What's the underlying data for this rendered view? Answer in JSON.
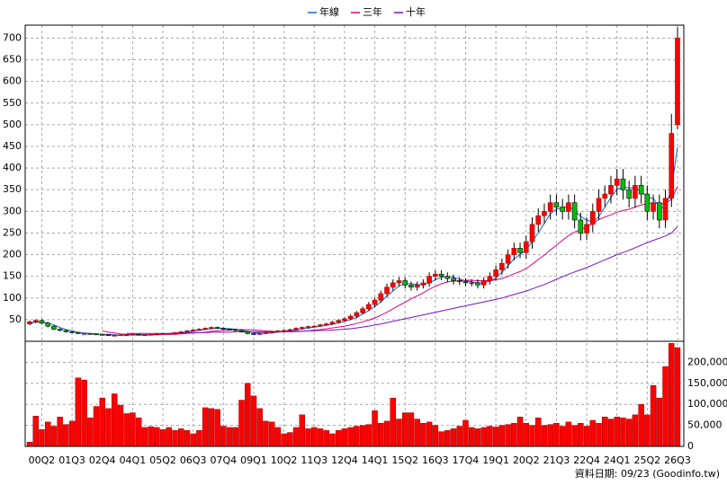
{
  "chart_data": {
    "type": "candlestick",
    "categories": [
      null,
      null,
      "00Q2",
      null,
      null,
      null,
      null,
      "01Q3",
      null,
      null,
      null,
      null,
      "02Q4",
      null,
      null,
      null,
      null,
      "04Q1",
      null,
      null,
      null,
      null,
      "05Q2",
      null,
      null,
      null,
      null,
      "06Q3",
      null,
      null,
      null,
      null,
      "07Q4",
      null,
      null,
      null,
      null,
      "09Q1",
      null,
      null,
      null,
      null,
      "10Q2",
      null,
      null,
      null,
      null,
      "11Q3",
      null,
      null,
      null,
      null,
      "12Q4",
      null,
      null,
      null,
      null,
      "14Q1",
      null,
      null,
      null,
      null,
      "15Q2",
      null,
      null,
      null,
      null,
      "16Q3",
      null,
      null,
      null,
      null,
      "17Q4",
      null,
      null,
      null,
      null,
      "19Q1",
      null,
      null,
      null,
      null,
      "20Q2",
      null,
      null,
      null,
      null,
      "21Q3",
      null,
      null,
      null,
      null,
      "22Q4",
      null,
      null,
      null,
      null,
      "24Q1",
      null,
      null,
      null,
      null,
      "25Q2",
      null,
      null,
      null,
      null,
      "26Q3"
    ],
    "ohlc": [
      [
        40,
        48,
        37,
        45
      ],
      [
        45,
        51,
        42,
        48
      ],
      [
        48,
        51,
        39,
        42
      ],
      [
        42,
        45,
        32,
        35
      ],
      [
        35,
        37,
        26,
        28
      ],
      [
        28,
        30,
        23,
        25
      ],
      [
        25,
        27,
        20,
        22
      ],
      [
        22,
        23,
        19,
        20
      ],
      [
        20,
        21,
        17,
        18
      ],
      [
        18,
        19,
        17,
        18
      ],
      [
        18,
        19,
        16,
        17
      ],
      [
        17,
        18,
        15,
        16
      ],
      [
        16,
        17,
        14,
        15
      ],
      [
        15,
        16,
        13,
        14
      ],
      [
        14,
        15,
        13,
        14
      ],
      [
        14,
        16,
        13,
        15
      ],
      [
        15,
        16,
        14,
        15
      ],
      [
        15,
        17,
        14,
        16
      ],
      [
        16,
        17,
        14,
        15
      ],
      [
        15,
        16,
        14,
        15
      ],
      [
        15,
        17,
        14,
        16
      ],
      [
        16,
        18,
        15,
        17
      ],
      [
        17,
        19,
        16,
        18
      ],
      [
        18,
        19,
        17,
        18
      ],
      [
        18,
        21,
        17,
        20
      ],
      [
        20,
        23,
        19,
        22
      ],
      [
        22,
        26,
        21,
        24
      ],
      [
        24,
        28,
        23,
        26
      ],
      [
        26,
        30,
        25,
        28
      ],
      [
        28,
        32,
        26,
        30
      ],
      [
        30,
        34,
        28,
        32
      ],
      [
        32,
        34,
        28,
        30
      ],
      [
        30,
        32,
        26,
        28
      ],
      [
        28,
        30,
        25,
        27
      ],
      [
        27,
        29,
        23,
        25
      ],
      [
        25,
        27,
        20,
        22
      ],
      [
        22,
        24,
        16,
        18
      ],
      [
        18,
        19,
        14,
        16
      ],
      [
        16,
        20,
        15,
        18
      ],
      [
        18,
        22,
        17,
        20
      ],
      [
        20,
        24,
        19,
        22
      ],
      [
        22,
        26,
        21,
        24
      ],
      [
        24,
        27,
        22,
        25
      ],
      [
        25,
        29,
        24,
        27
      ],
      [
        27,
        32,
        25,
        30
      ],
      [
        30,
        34,
        28,
        32
      ],
      [
        32,
        36,
        30,
        34
      ],
      [
        34,
        37,
        32,
        35
      ],
      [
        35,
        40,
        33,
        38
      ],
      [
        38,
        43,
        36,
        40
      ],
      [
        40,
        47,
        38,
        44
      ],
      [
        44,
        51,
        41,
        48
      ],
      [
        48,
        55,
        45,
        52
      ],
      [
        52,
        62,
        49,
        58
      ],
      [
        58,
        70,
        54,
        66
      ],
      [
        66,
        80,
        62,
        75
      ],
      [
        75,
        91,
        70,
        85
      ],
      [
        85,
        101,
        79,
        95
      ],
      [
        95,
        117,
        89,
        110
      ],
      [
        110,
        133,
        102,
        125
      ],
      [
        125,
        143,
        117,
        135
      ],
      [
        135,
        148,
        127,
        140
      ],
      [
        140,
        148,
        122,
        130
      ],
      [
        130,
        138,
        117,
        125
      ],
      [
        125,
        138,
        117,
        130
      ],
      [
        130,
        143,
        122,
        135
      ],
      [
        135,
        159,
        126,
        150
      ],
      [
        150,
        164,
        141,
        155
      ],
      [
        155,
        164,
        141,
        150
      ],
      [
        150,
        159,
        136,
        145
      ],
      [
        145,
        154,
        131,
        140
      ],
      [
        140,
        148,
        130,
        138
      ],
      [
        138,
        146,
        127,
        135
      ],
      [
        135,
        143,
        127,
        135
      ],
      [
        135,
        143,
        122,
        130
      ],
      [
        130,
        148,
        122,
        140
      ],
      [
        140,
        159,
        131,
        150
      ],
      [
        150,
        175,
        140,
        165
      ],
      [
        165,
        191,
        154,
        180
      ],
      [
        180,
        212,
        168,
        200
      ],
      [
        200,
        228,
        187,
        215
      ],
      [
        215,
        228,
        192,
        205
      ],
      [
        205,
        244,
        191,
        230
      ],
      [
        230,
        286,
        214,
        270
      ],
      [
        270,
        307,
        253,
        290
      ],
      [
        290,
        318,
        272,
        300
      ],
      [
        300,
        339,
        281,
        320
      ],
      [
        320,
        339,
        291,
        310
      ],
      [
        310,
        329,
        281,
        300
      ],
      [
        300,
        339,
        281,
        320
      ],
      [
        320,
        339,
        261,
        280
      ],
      [
        280,
        297,
        233,
        250
      ],
      [
        250,
        286,
        234,
        270
      ],
      [
        270,
        318,
        252,
        300
      ],
      [
        300,
        350,
        280,
        330
      ],
      [
        330,
        360,
        310,
        340
      ],
      [
        340,
        382,
        318,
        360
      ],
      [
        360,
        398,
        337,
        375
      ],
      [
        375,
        398,
        327,
        350
      ],
      [
        350,
        371,
        309,
        330
      ],
      [
        330,
        382,
        308,
        360
      ],
      [
        360,
        382,
        318,
        340
      ],
      [
        340,
        360,
        280,
        300
      ],
      [
        300,
        339,
        281,
        320
      ],
      [
        320,
        339,
        261,
        280
      ],
      [
        280,
        350,
        262,
        330
      ],
      [
        330,
        525,
        310,
        480
      ],
      [
        500,
        725,
        490,
        700
      ]
    ],
    "up_color": "#ff0000",
    "down_color": "#00c000",
    "series": [
      {
        "name": "年線",
        "color": "#1f5fd0",
        "values": [
          42,
          44,
          44,
          42,
          38,
          32,
          27,
          24,
          21,
          19,
          18,
          17,
          16,
          16,
          15,
          14,
          15,
          15,
          15,
          15,
          15,
          16,
          16,
          17,
          18,
          19,
          21,
          23,
          25,
          27,
          29,
          30,
          30,
          29,
          28,
          25,
          23,
          20,
          19,
          18,
          19,
          21,
          23,
          24,
          26,
          28,
          30,
          33,
          35,
          37,
          39,
          42,
          46,
          50,
          55,
          63,
          71,
          80,
          91,
          104,
          116,
          128,
          133,
          133,
          131,
          130,
          135,
          142,
          148,
          150,
          148,
          143,
          140,
          137,
          135,
          135,
          139,
          146,
          159,
          174,
          190,
          200,
          212,
          230,
          251,
          272,
          295,
          305,
          308,
          312,
          302,
          288,
          280,
          275,
          288,
          310,
          332,
          351,
          356,
          354,
          354,
          346,
          333,
          330,
          310,
          308,
          353,
          448
        ]
      },
      {
        "name": "三年",
        "color": "#e0007a",
        "values": [
          null,
          null,
          null,
          null,
          null,
          null,
          null,
          null,
          null,
          null,
          null,
          null,
          24,
          21,
          19,
          17,
          16,
          16,
          16,
          15,
          15,
          15,
          16,
          16,
          16,
          17,
          18,
          19,
          20,
          21,
          23,
          24,
          25,
          26,
          27,
          27,
          27,
          26,
          25,
          24,
          23,
          22,
          22,
          22,
          22,
          23,
          24,
          26,
          27,
          29,
          31,
          33,
          35,
          38,
          41,
          45,
          49,
          54,
          60,
          67,
          75,
          83,
          90,
          98,
          105,
          112,
          120,
          127,
          133,
          137,
          139,
          140,
          141,
          141,
          140,
          140,
          140,
          142,
          145,
          150,
          156,
          161,
          168,
          178,
          189,
          199,
          211,
          222,
          233,
          244,
          252,
          258,
          264,
          272,
          281,
          287,
          292,
          298,
          302,
          305,
          310,
          315,
          317,
          320,
          317,
          318,
          328,
          358
        ]
      },
      {
        "name": "十年",
        "color": "#7a10c8",
        "values": [
          null,
          null,
          null,
          null,
          null,
          null,
          null,
          null,
          null,
          null,
          null,
          null,
          null,
          null,
          null,
          null,
          18,
          18,
          18,
          18,
          18,
          18,
          18,
          18,
          19,
          19,
          19,
          20,
          20,
          20,
          21,
          21,
          21,
          21,
          22,
          22,
          22,
          22,
          22,
          22,
          22,
          22,
          22,
          23,
          23,
          23,
          24,
          24,
          25,
          25,
          26,
          27,
          28,
          29,
          31,
          33,
          35,
          38,
          40,
          43,
          46,
          49,
          52,
          55,
          58,
          61,
          64,
          67,
          70,
          73,
          76,
          79,
          82,
          85,
          88,
          91,
          94,
          97,
          100,
          104,
          108,
          112,
          116,
          121,
          126,
          131,
          137,
          143,
          149,
          155,
          160,
          165,
          170,
          176,
          182,
          188,
          194,
          200,
          205,
          210,
          216,
          222,
          228,
          233,
          238,
          243,
          250,
          265
        ]
      }
    ],
    "ylim": [
      0,
      730
    ],
    "yticks": [
      50,
      100,
      150,
      200,
      250,
      300,
      350,
      400,
      450,
      500,
      550,
      600,
      650,
      700
    ],
    "grid": true,
    "volume": {
      "color": "#ff0000",
      "values": [
        10000,
        72000,
        40000,
        58000,
        48000,
        70000,
        52000,
        60000,
        163000,
        158000,
        68000,
        95000,
        115000,
        90000,
        125000,
        98000,
        78000,
        80000,
        68000,
        45000,
        47000,
        45000,
        40000,
        45000,
        38000,
        42000,
        38000,
        30000,
        38000,
        92000,
        90000,
        88000,
        48000,
        45000,
        45000,
        110000,
        150000,
        120000,
        90000,
        60000,
        58000,
        45000,
        30000,
        33000,
        45000,
        75000,
        42000,
        45000,
        42000,
        38000,
        30000,
        38000,
        42000,
        45000,
        48000,
        50000,
        52000,
        85000,
        55000,
        60000,
        115000,
        65000,
        80000,
        80000,
        65000,
        55000,
        58000,
        50000,
        35000,
        38000,
        42000,
        48000,
        62000,
        45000,
        42000,
        45000,
        48000,
        46000,
        50000,
        52000,
        55000,
        70000,
        55000,
        50000,
        68000,
        50000,
        52000,
        55000,
        48000,
        58000,
        50000,
        55000,
        48000,
        62000,
        55000,
        70000,
        65000,
        70000,
        68000,
        65000,
        75000,
        100000,
        75000,
        145000,
        115000,
        190000,
        245000,
        235000
      ],
      "ylim": [
        0,
        250000
      ],
      "yticks": [
        0,
        {
          "value": 50000,
          "label": "50,000"
        },
        {
          "value": 100000,
          "label": "100,000"
        },
        {
          "value": 150000,
          "label": "150,000"
        },
        {
          "value": 200000,
          "label": "200,000"
        }
      ]
    },
    "footnote": "資料日期: 09/23 (Goodinfo.tw)"
  }
}
